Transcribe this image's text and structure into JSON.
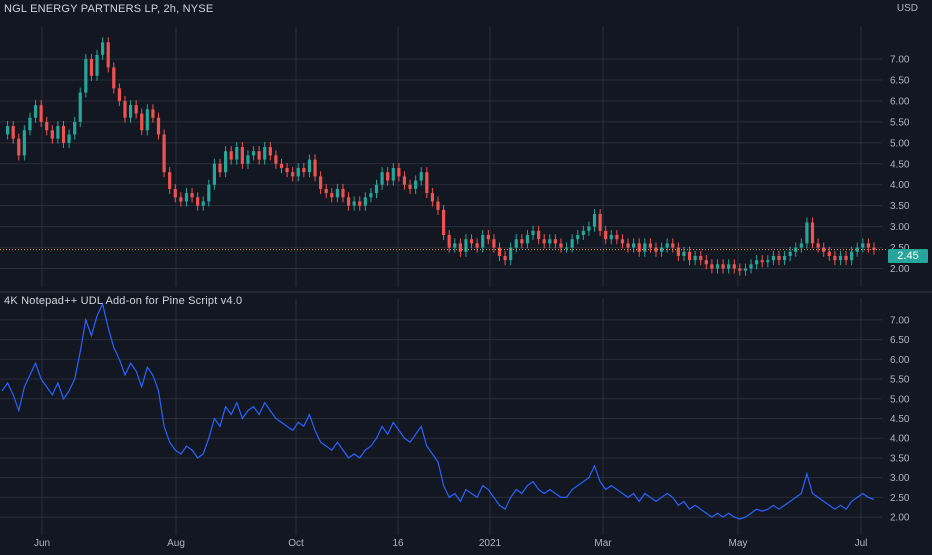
{
  "chart_title": "NGL ENERGY PARTNERS LP, 2h, NYSE",
  "indicator_title": "4K Notepad++ UDL Add-on for Pine Script v4.0",
  "currency": "USD",
  "last_price": "2.45",
  "colors": {
    "background": "#131722",
    "grid": "#2a2e39",
    "up": "#26a69a",
    "down": "#ef5350",
    "indicator_line": "#2962ff",
    "last_price_line": "#f0a33a"
  },
  "chart_data": [
    {
      "type": "line",
      "panel": "price",
      "title": "NGL ENERGY PARTNERS LP, 2h, NYSE",
      "ylim": [
        1.75,
        7.55
      ],
      "y_ticks": [
        "7.00",
        "6.50",
        "6.00",
        "5.50",
        "5.00",
        "4.50",
        "4.00",
        "3.50",
        "3.00",
        "2.50",
        "2.00"
      ],
      "x_ticks": [
        "Jun",
        "Aug",
        "Oct",
        "16",
        "2021",
        "Mar",
        "May",
        "Jul"
      ],
      "last_value": 2.45,
      "series": [
        {
          "values": [
            5.2,
            5.4,
            5.1,
            4.7,
            5.3,
            5.6,
            5.9,
            5.5,
            5.3,
            5.1,
            5.4,
            5.0,
            5.2,
            5.5,
            6.2,
            7.0,
            6.6,
            7.1,
            7.4,
            6.8,
            6.3,
            6.0,
            5.6,
            5.9,
            5.7,
            5.3,
            5.8,
            5.6,
            5.2,
            4.3,
            3.9,
            3.7,
            3.6,
            3.8,
            3.7,
            3.5,
            3.6,
            4.0,
            4.5,
            4.3,
            4.8,
            4.6,
            4.9,
            4.5,
            4.7,
            4.8,
            4.6,
            4.9,
            4.7,
            4.5,
            4.4,
            4.3,
            4.2,
            4.4,
            4.3,
            4.6,
            4.2,
            3.9,
            3.8,
            3.7,
            3.9,
            3.7,
            3.5,
            3.6,
            3.5,
            3.7,
            3.8,
            4.0,
            4.3,
            4.1,
            4.4,
            4.2,
            4.0,
            3.9,
            4.1,
            4.3,
            3.8,
            3.6,
            3.4,
            2.8,
            2.5,
            2.6,
            2.4,
            2.7,
            2.6,
            2.5,
            2.8,
            2.7,
            2.5,
            2.3,
            2.2,
            2.5,
            2.7,
            2.6,
            2.8,
            2.9,
            2.7,
            2.6,
            2.7,
            2.6,
            2.5,
            2.5,
            2.7,
            2.8,
            2.9,
            3.0,
            3.3,
            2.9,
            2.7,
            2.8,
            2.7,
            2.6,
            2.5,
            2.6,
            2.4,
            2.6,
            2.5,
            2.4,
            2.5,
            2.6,
            2.5,
            2.3,
            2.4,
            2.2,
            2.3,
            2.2,
            2.1,
            2.0,
            2.1,
            2.0,
            2.1,
            2.0,
            1.95,
            2.0,
            2.1,
            2.2,
            2.15,
            2.2,
            2.3,
            2.2,
            2.3,
            2.4,
            2.5,
            2.6,
            3.1,
            2.6,
            2.5,
            2.4,
            2.3,
            2.2,
            2.3,
            2.2,
            2.4,
            2.5,
            2.6,
            2.5,
            2.45
          ]
        }
      ]
    },
    {
      "type": "line",
      "panel": "indicator",
      "title": "4K Notepad++ UDL Add-on for Pine Script v4.0",
      "ylim": [
        1.75,
        7.3
      ],
      "y_ticks": [
        "7.00",
        "6.50",
        "6.00",
        "5.50",
        "5.00",
        "4.50",
        "4.00",
        "3.50",
        "3.00",
        "2.50",
        "2.00"
      ],
      "x_ticks": [
        "Jun",
        "Aug",
        "Oct",
        "16",
        "2021",
        "Mar",
        "May",
        "Jul"
      ],
      "series": [
        {
          "values": [
            5.2,
            5.4,
            5.1,
            4.7,
            5.3,
            5.6,
            5.9,
            5.5,
            5.3,
            5.1,
            5.4,
            5.0,
            5.2,
            5.5,
            6.2,
            7.0,
            6.6,
            7.1,
            7.4,
            6.8,
            6.3,
            6.0,
            5.6,
            5.9,
            5.7,
            5.3,
            5.8,
            5.6,
            5.2,
            4.3,
            3.9,
            3.7,
            3.6,
            3.8,
            3.7,
            3.5,
            3.6,
            4.0,
            4.5,
            4.3,
            4.8,
            4.6,
            4.9,
            4.5,
            4.7,
            4.8,
            4.6,
            4.9,
            4.7,
            4.5,
            4.4,
            4.3,
            4.2,
            4.4,
            4.3,
            4.6,
            4.2,
            3.9,
            3.8,
            3.7,
            3.9,
            3.7,
            3.5,
            3.6,
            3.5,
            3.7,
            3.8,
            4.0,
            4.3,
            4.1,
            4.4,
            4.2,
            4.0,
            3.9,
            4.1,
            4.3,
            3.8,
            3.6,
            3.4,
            2.8,
            2.5,
            2.6,
            2.4,
            2.7,
            2.6,
            2.5,
            2.8,
            2.7,
            2.5,
            2.3,
            2.2,
            2.5,
            2.7,
            2.6,
            2.8,
            2.9,
            2.7,
            2.6,
            2.7,
            2.6,
            2.5,
            2.5,
            2.7,
            2.8,
            2.9,
            3.0,
            3.3,
            2.9,
            2.7,
            2.8,
            2.7,
            2.6,
            2.5,
            2.6,
            2.4,
            2.6,
            2.5,
            2.4,
            2.5,
            2.6,
            2.5,
            2.3,
            2.4,
            2.2,
            2.3,
            2.2,
            2.1,
            2.0,
            2.1,
            2.0,
            2.1,
            2.0,
            1.95,
            2.0,
            2.1,
            2.2,
            2.15,
            2.2,
            2.3,
            2.2,
            2.3,
            2.4,
            2.5,
            2.6,
            3.1,
            2.6,
            2.5,
            2.4,
            2.3,
            2.2,
            2.3,
            2.2,
            2.4,
            2.5,
            2.6,
            2.5,
            2.45
          ]
        }
      ]
    }
  ]
}
